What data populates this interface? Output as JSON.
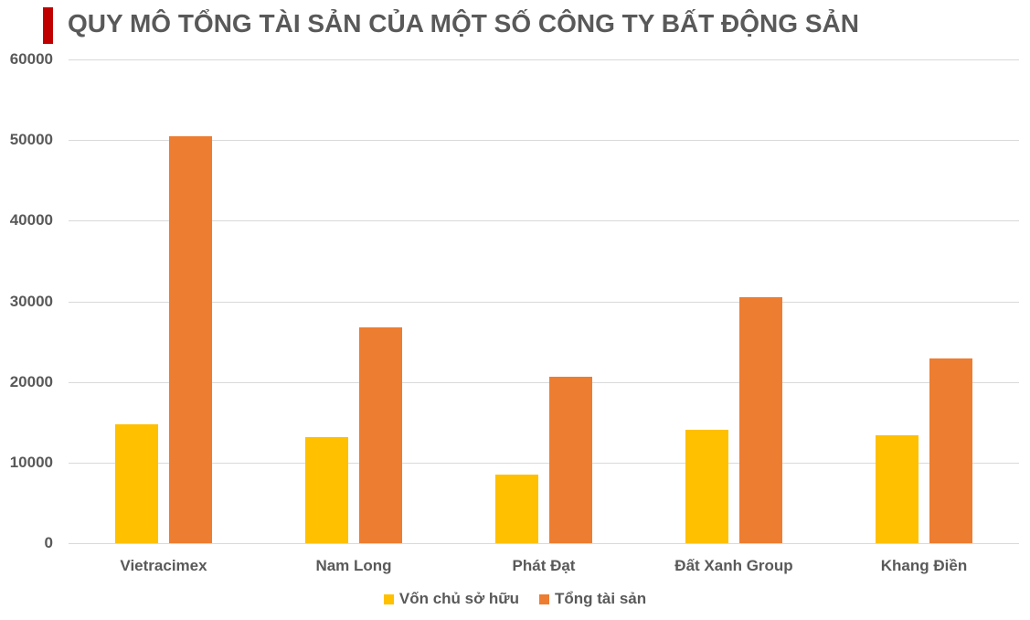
{
  "title": "QUY MÔ TỔNG TÀI SẢN CỦA MỘT SỐ CÔNG TY BẤT ĐỘNG SẢN",
  "colors": {
    "accent_bar": "#c00000",
    "series1": "#ffc000",
    "series2": "#ed7d31",
    "grid": "#d9d9d9",
    "text": "#595959"
  },
  "chart_data": {
    "type": "bar",
    "title": "QUY MÔ TỔNG TÀI SẢN CỦA MỘT SỐ CÔNG TY BẤT ĐỘNG SẢN",
    "xlabel": "",
    "ylabel": "",
    "ylim": [
      0,
      60000
    ],
    "yticks": [
      "0",
      "10000",
      "20000",
      "30000",
      "40000",
      "50000",
      "60000"
    ],
    "grid": true,
    "legend_position": "bottom",
    "categories": [
      "Vietracimex",
      "Nam Long",
      "Phát Đạt",
      "Đất Xanh Group",
      "Khang Điền"
    ],
    "series": [
      {
        "name": "Vốn chủ sở hữu",
        "color": "#ffc000",
        "values": [
          14700,
          13200,
          8500,
          14100,
          13400
        ]
      },
      {
        "name": "Tổng tài sản",
        "color": "#ed7d31",
        "values": [
          50500,
          26800,
          20600,
          30500,
          22900
        ]
      }
    ]
  }
}
